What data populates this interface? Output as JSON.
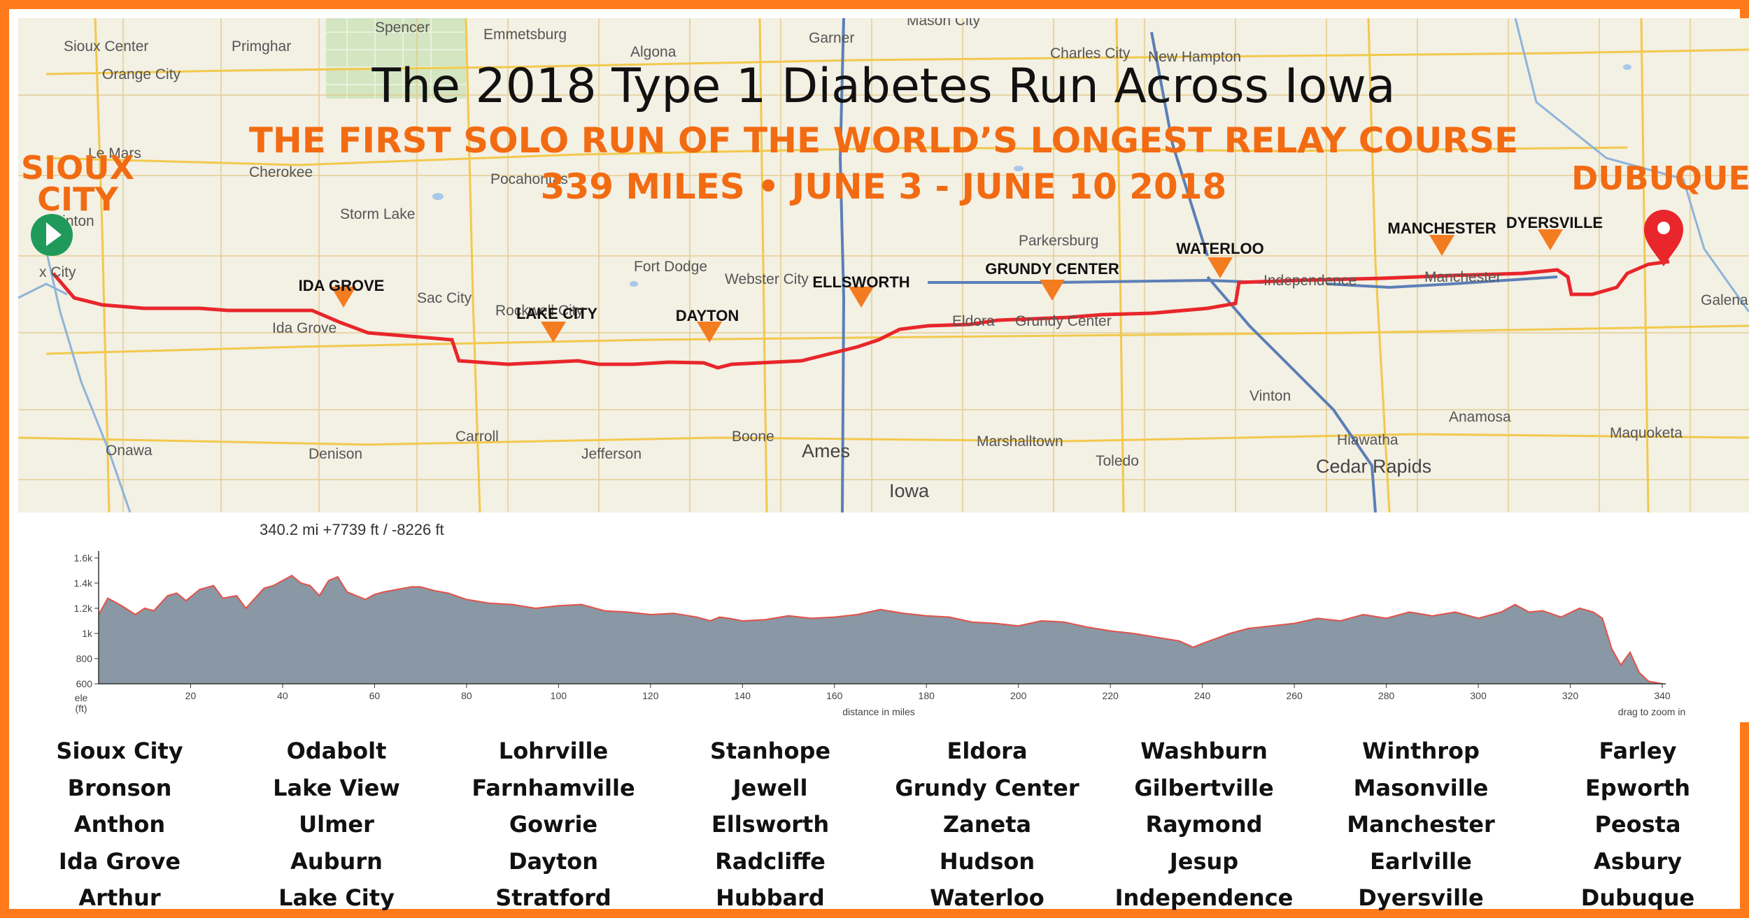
{
  "title": "The 2018 Type 1 Diabetes Run Across Iowa",
  "subtitle_line1": "THE FIRST SOLO RUN OF THE WORLD’S LONGEST RELAY COURSE",
  "subtitle_line2": "339 MILES • JUNE 3 - JUNE 10 2018",
  "start": {
    "line1": "SIOUX",
    "line2": "CITY"
  },
  "finish": "DUBUQUE",
  "checkpoints": [
    "IDA GROVE",
    "LAKE CITY",
    "DAYTON",
    "ELLSWORTH",
    "GRUNDY CENTER",
    "WATERLOO",
    "MANCHESTER",
    "DYERSVILLE"
  ],
  "map_places": [
    "Spencer",
    "Emmetsburg",
    "Algona",
    "Garner",
    "Mason City",
    "Charles City",
    "New Hampton",
    "Sioux Center",
    "Orange City",
    "Primghar",
    "Le Mars",
    "Cherokee",
    "Pocahontas",
    "Storm Lake",
    "Hinton",
    "Fort Dodge",
    "Webster City",
    "Parkersburg",
    "Sac City",
    "Ida Grove",
    "Rockwell City",
    "Eldora",
    "Grundy Center",
    "Independence",
    "Manchester",
    "Galena",
    "Vinton",
    "Anamosa",
    "Hiawatha",
    "Maquoketa",
    "Cedar Rapids",
    "Onawa",
    "Denison",
    "Carroll",
    "Jefferson",
    "Boone",
    "Ames",
    "Marshalltown",
    "Toledo",
    "Iowa",
    "x City"
  ],
  "elevation": {
    "summary": "340.2 mi +7739 ft / -8226 ft",
    "y_axis_label": [
      "ele",
      "(ft)"
    ],
    "y_ticks": [
      "600",
      "800",
      "1k",
      "1.2k",
      "1.4k",
      "1.6k"
    ],
    "x_ticks": [
      "20",
      "40",
      "60",
      "80",
      "100",
      "120",
      "140",
      "160",
      "180",
      "200",
      "220",
      "240",
      "260",
      "280",
      "300",
      "320",
      "340"
    ],
    "x_label": "distance in miles",
    "zoom_hint": "drag to zoom in"
  },
  "chart_data": {
    "type": "area",
    "title": "",
    "xlabel": "distance in miles",
    "ylabel": "ele (ft)",
    "xlim": [
      0,
      340
    ],
    "ylim": [
      550,
      1600
    ],
    "x": [
      0,
      2,
      5,
      8,
      10,
      12,
      15,
      17,
      19,
      22,
      25,
      27,
      30,
      32,
      34,
      36,
      38,
      40,
      42,
      44,
      46,
      48,
      50,
      52,
      54,
      56,
      58,
      60,
      62,
      65,
      68,
      70,
      73,
      76,
      80,
      85,
      90,
      95,
      100,
      105,
      110,
      115,
      120,
      125,
      130,
      133,
      135,
      137,
      140,
      145,
      150,
      155,
      160,
      165,
      170,
      175,
      180,
      185,
      190,
      195,
      200,
      205,
      210,
      215,
      220,
      225,
      230,
      235,
      238,
      240,
      243,
      246,
      250,
      255,
      260,
      265,
      270,
      275,
      280,
      285,
      290,
      295,
      300,
      305,
      308,
      311,
      314,
      318,
      322,
      325,
      327,
      329,
      331,
      333,
      335,
      337,
      340
    ],
    "values": [
      1150,
      1280,
      1220,
      1150,
      1200,
      1180,
      1300,
      1320,
      1260,
      1350,
      1380,
      1280,
      1300,
      1200,
      1280,
      1360,
      1380,
      1420,
      1460,
      1400,
      1380,
      1300,
      1420,
      1450,
      1330,
      1300,
      1270,
      1310,
      1330,
      1350,
      1370,
      1370,
      1340,
      1320,
      1270,
      1240,
      1230,
      1200,
      1220,
      1230,
      1180,
      1170,
      1150,
      1160,
      1130,
      1100,
      1130,
      1120,
      1100,
      1110,
      1140,
      1120,
      1130,
      1150,
      1190,
      1160,
      1140,
      1130,
      1090,
      1080,
      1060,
      1100,
      1090,
      1050,
      1020,
      1000,
      970,
      940,
      890,
      920,
      960,
      1000,
      1040,
      1060,
      1080,
      1120,
      1100,
      1150,
      1120,
      1170,
      1140,
      1170,
      1120,
      1170,
      1230,
      1170,
      1180,
      1130,
      1200,
      1170,
      1120,
      880,
      750,
      850,
      690,
      620,
      600
    ]
  },
  "towns": [
    [
      "Sioux City",
      "Bronson",
      "Anthon",
      "Ida Grove",
      "Arthur"
    ],
    [
      "Odabolt",
      "Lake View",
      "Ulmer",
      "Auburn",
      "Lake City"
    ],
    [
      "Lohrville",
      "Farnhamville",
      "Gowrie",
      "Dayton",
      "Stratford"
    ],
    [
      "Stanhope",
      "Jewell",
      "Ellsworth",
      "Radcliffe",
      "Hubbard"
    ],
    [
      "Eldora",
      "Grundy Center",
      "Zaneta",
      "Hudson",
      "Waterloo"
    ],
    [
      "Washburn",
      "Gilbertville",
      "Raymond",
      "Jesup",
      "Independence"
    ],
    [
      "Winthrop",
      "Masonville",
      "Manchester",
      "Earlville",
      "Dyersville"
    ],
    [
      "Farley",
      "Epworth",
      "Peosta",
      "Asbury",
      "Dubuque"
    ]
  ],
  "colors": {
    "frame": "#ff7a1a",
    "accent": "#f26b12",
    "route": "#e8262b",
    "checkpoint": "#f47c20",
    "start_pin": "#1f9a5a",
    "finish_pin": "#e8262b",
    "elevation_fill": "#8a97a4",
    "elevation_line": "#e2524a"
  },
  "icons": {
    "start": "start-pin-icon",
    "finish": "finish-pin-icon",
    "checkpoint": "checkpoint-marker-icon"
  }
}
